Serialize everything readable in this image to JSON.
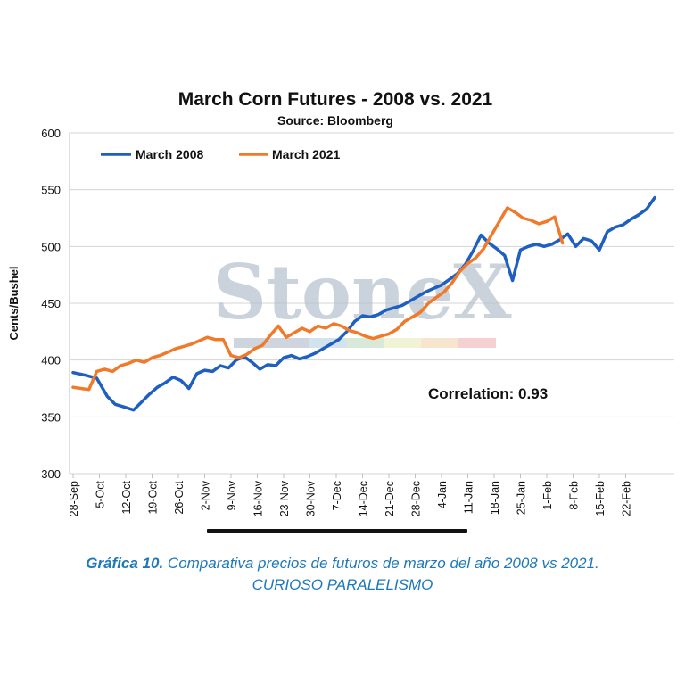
{
  "chart_data": {
    "type": "line",
    "title": "March Corn Futures - 2008 vs. 2021",
    "subtitle": "Source: Bloomberg",
    "ylabel": "Cents/Bushel",
    "xlabel": "",
    "ylim": [
      300,
      600
    ],
    "yticks": [
      300,
      350,
      400,
      450,
      500,
      550,
      600
    ],
    "grid": true,
    "legend_position": "top-left",
    "categories": [
      "28-Sep",
      "5-Oct",
      "12-Oct",
      "19-Oct",
      "26-Oct",
      "2-Nov",
      "9-Nov",
      "16-Nov",
      "23-Nov",
      "30-Nov",
      "7-Dec",
      "14-Dec",
      "21-Dec",
      "28-Dec",
      "4-Jan",
      "11-Jan",
      "18-Jan",
      "25-Jan",
      "1-Feb",
      "8-Feb",
      "15-Feb",
      "22-Feb"
    ],
    "series": [
      {
        "name": "March 2008",
        "color": "#1f5fc0",
        "x": [
          0,
          0.4,
          0.9,
          1.3,
          1.6,
          1.9,
          2.3,
          2.6,
          2.9,
          3.2,
          3.5,
          3.8,
          4.1,
          4.4,
          4.7,
          5.0,
          5.3,
          5.6,
          5.9,
          6.2,
          6.5,
          6.8,
          7.1,
          7.4,
          7.7,
          8.0,
          8.3,
          8.6,
          8.9,
          9.2,
          9.5,
          9.8,
          10.1,
          10.4,
          10.7,
          11.0,
          11.3,
          11.6,
          11.9,
          12.2,
          12.5,
          12.8,
          13.1,
          13.4,
          13.7,
          14.0,
          14.3,
          14.6,
          14.9,
          15.2,
          15.5,
          15.8,
          16.1,
          16.4,
          16.7,
          17.0,
          17.3,
          17.6,
          17.9,
          18.2,
          18.5,
          18.8,
          19.1,
          19.4,
          19.7,
          20.0,
          20.3,
          20.6,
          20.9,
          21.2,
          21.5,
          21.8,
          22.1
        ],
        "values": [
          389,
          387,
          384,
          368,
          361,
          359,
          356,
          363,
          370,
          376,
          380,
          385,
          382,
          375,
          388,
          391,
          390,
          395,
          393,
          400,
          403,
          398,
          392,
          396,
          395,
          402,
          404,
          401,
          403,
          406,
          410,
          414,
          418,
          425,
          434,
          439,
          438,
          440,
          444,
          446,
          448,
          452,
          456,
          460,
          463,
          466,
          471,
          476,
          484,
          496,
          510,
          503,
          498,
          492,
          470,
          497,
          500,
          502,
          500,
          502,
          506,
          511,
          500,
          507,
          505,
          497,
          513,
          517,
          519,
          524,
          528,
          533,
          543
        ]
      },
      {
        "name": "March 2021",
        "color": "#f07a2a",
        "x": [
          0,
          0.3,
          0.6,
          0.9,
          1.2,
          1.5,
          1.8,
          2.1,
          2.4,
          2.7,
          3.0,
          3.3,
          3.6,
          3.9,
          4.2,
          4.5,
          4.8,
          5.1,
          5.4,
          5.7,
          6.0,
          6.3,
          6.6,
          6.9,
          7.2,
          7.5,
          7.8,
          8.1,
          8.4,
          8.7,
          9.0,
          9.3,
          9.6,
          9.9,
          10.2,
          10.5,
          10.8,
          11.1,
          11.4,
          11.7,
          12.0,
          12.3,
          12.6,
          12.9,
          13.2,
          13.5,
          13.8,
          14.1,
          14.4,
          14.7,
          15.0,
          15.3,
          15.6,
          15.9,
          16.2,
          16.5,
          16.8,
          17.1,
          17.4,
          17.7,
          18.0,
          18.3,
          18.6
        ],
        "values": [
          376,
          375,
          374,
          390,
          392,
          390,
          395,
          397,
          400,
          398,
          402,
          404,
          407,
          410,
          412,
          414,
          417,
          420,
          418,
          418,
          404,
          402,
          405,
          410,
          413,
          422,
          430,
          420,
          424,
          428,
          425,
          430,
          428,
          432,
          430,
          426,
          424,
          421,
          419,
          421,
          423,
          427,
          434,
          438,
          442,
          450,
          455,
          460,
          468,
          478,
          485,
          490,
          498,
          510,
          522,
          534,
          530,
          525,
          523,
          520,
          522,
          526,
          503
        ]
      }
    ],
    "annotations": [
      "Correlation: 0.93"
    ],
    "watermark": "StoneX"
  },
  "caption": {
    "prefix": "Gráfica 10.",
    "text": " Comparativa precios de futuros de marzo del año 2008 vs 2021.",
    "line2": "CURIOSO PARALELISMO"
  }
}
